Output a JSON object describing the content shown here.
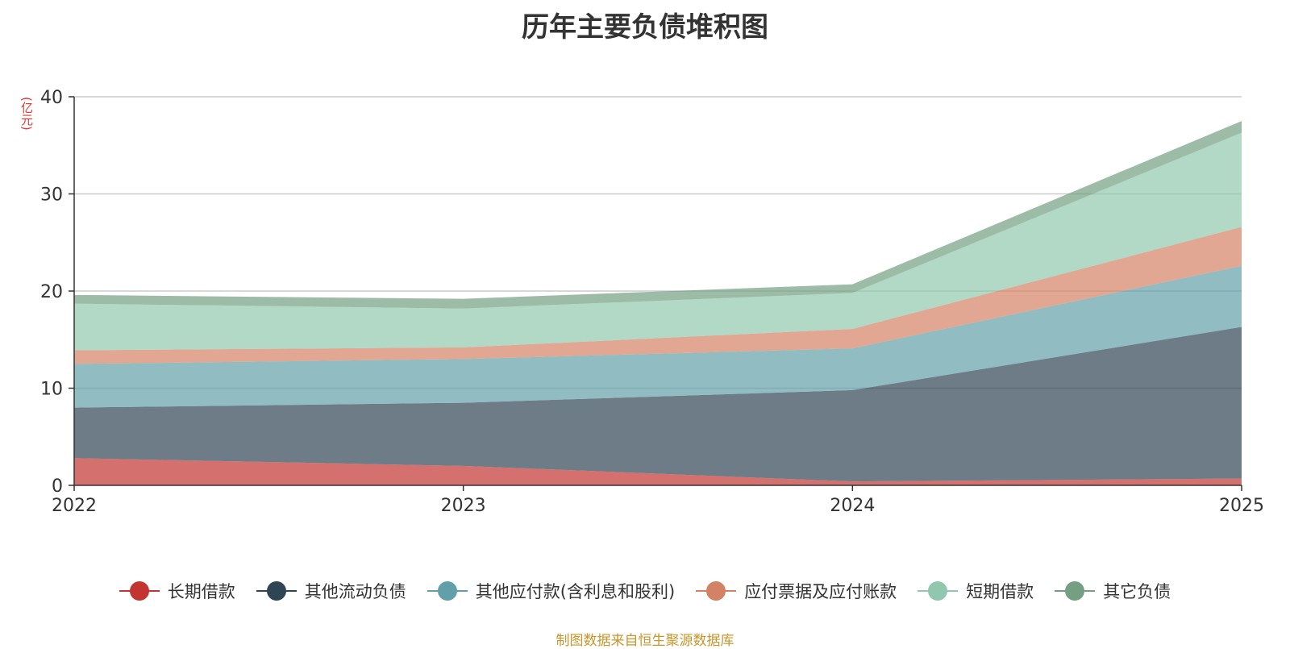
{
  "chart_data": {
    "type": "area",
    "stacked": true,
    "title": "历年主要负债堆积图",
    "unit_label": "(亿元)",
    "x": [
      "2022",
      "2023",
      "2024",
      "2025"
    ],
    "ylim": [
      0,
      40
    ],
    "yticks": [
      "0",
      "10",
      "20",
      "30",
      "40"
    ],
    "grid": true,
    "legend_position": "bottom",
    "series": [
      {
        "name": "长期借款",
        "color": "#c23531",
        "values": [
          2.8,
          2.0,
          0.4,
          0.7
        ]
      },
      {
        "name": "其他流动负债",
        "color": "#2f4554",
        "values": [
          5.2,
          6.5,
          9.4,
          15.6
        ]
      },
      {
        "name": "其他应付款(含利息和股利)",
        "color": "#61a0a8",
        "values": [
          4.5,
          4.5,
          4.3,
          6.3
        ]
      },
      {
        "name": "应付票据及应付账款",
        "color": "#d48265",
        "values": [
          1.4,
          1.2,
          2.0,
          4.0
        ]
      },
      {
        "name": "短期借款",
        "color": "#91c7ae",
        "values": [
          4.8,
          4.0,
          3.7,
          9.7
        ]
      },
      {
        "name": "其它负债",
        "color": "#749f83",
        "values": [
          0.9,
          1.0,
          0.9,
          1.2
        ]
      }
    ]
  },
  "source_note": "制图数据来自恒生聚源数据库"
}
